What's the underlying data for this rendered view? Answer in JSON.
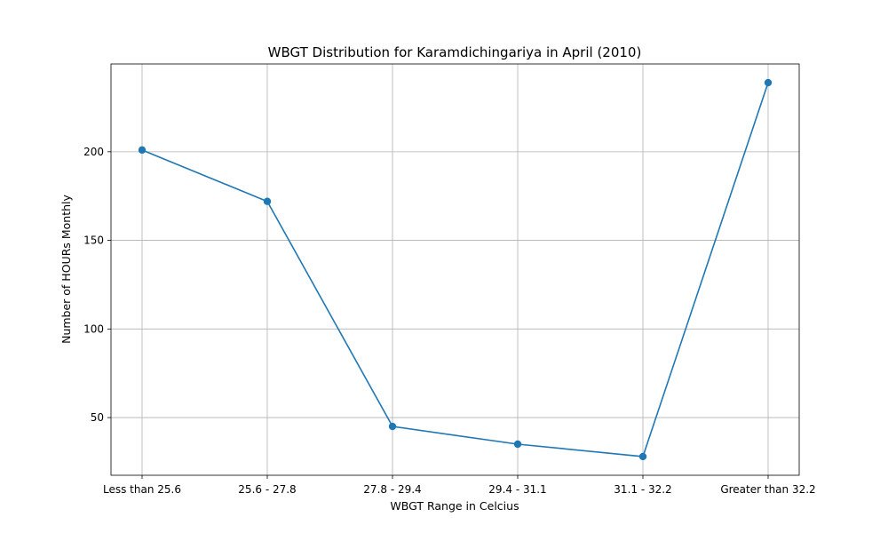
{
  "chart_data": {
    "type": "line",
    "title": "WBGT Distribution for Karamdichingariya in April (2010)",
    "xlabel": "WBGT Range in Celcius",
    "ylabel": "Number of HOURs Monthly",
    "categories": [
      "Less than 25.6",
      "25.6 - 27.8",
      "27.8 - 29.4",
      "29.4 - 31.1",
      "31.1 - 32.2",
      "Greater than 32.2"
    ],
    "series": [
      {
        "values": [
          201,
          172,
          45,
          35,
          28,
          239
        ],
        "color": "#1f77b4"
      }
    ],
    "ylim": [
      17.45,
      249.55
    ],
    "yticks": [
      50,
      100,
      150,
      200
    ],
    "grid": true,
    "marker": "circle"
  }
}
